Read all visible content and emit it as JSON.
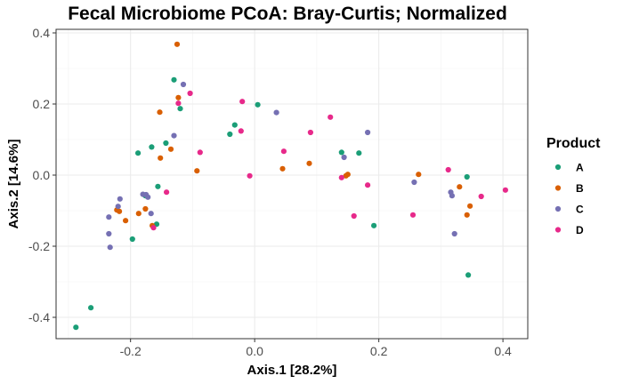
{
  "chart_data": {
    "type": "scatter",
    "title": "Fecal Microbiome PCoA: Bray-Curtis; Normalized",
    "xlabel": "Axis.1   [28.2%]",
    "ylabel": "Axis.2   [14.6%]",
    "xlim": [
      -0.32,
      0.44
    ],
    "ylim": [
      -0.46,
      0.41
    ],
    "x_ticks": [
      -0.2,
      0.0,
      0.2,
      0.4
    ],
    "x_tick_labels": [
      "-0.2",
      "0.0",
      "0.2",
      "0.4"
    ],
    "y_ticks": [
      -0.4,
      -0.2,
      0.0,
      0.2,
      0.4
    ],
    "y_tick_labels": [
      "-0.4",
      "-0.2",
      "0.0",
      "0.2",
      "0.4"
    ],
    "grid": true,
    "legend": {
      "title": "Product",
      "position": "right"
    },
    "series": [
      {
        "name": "A",
        "color": "#1b9e77",
        "points": [
          [
            -0.288,
            -0.428
          ],
          [
            -0.264,
            -0.373
          ],
          [
            -0.197,
            -0.18
          ],
          [
            -0.188,
            0.062
          ],
          [
            -0.176,
            -0.058
          ],
          [
            -0.166,
            0.079
          ],
          [
            -0.156,
            -0.032
          ],
          [
            -0.158,
            -0.138
          ],
          [
            -0.143,
            0.09
          ],
          [
            -0.13,
            0.268
          ],
          [
            -0.12,
            0.187
          ],
          [
            -0.04,
            0.115
          ],
          [
            -0.032,
            0.141
          ],
          [
            0.005,
            0.198
          ],
          [
            0.14,
            0.064
          ],
          [
            0.168,
            0.062
          ],
          [
            0.192,
            -0.142
          ],
          [
            0.342,
            -0.005
          ],
          [
            0.344,
            -0.281
          ]
        ]
      },
      {
        "name": "B",
        "color": "#d95f02",
        "points": [
          [
            -0.222,
            -0.098
          ],
          [
            -0.218,
            -0.102
          ],
          [
            -0.208,
            -0.128
          ],
          [
            -0.187,
            -0.108
          ],
          [
            -0.176,
            -0.095
          ],
          [
            -0.165,
            -0.142
          ],
          [
            -0.153,
            0.177
          ],
          [
            -0.152,
            0.048
          ],
          [
            -0.135,
            0.073
          ],
          [
            -0.125,
            0.368
          ],
          [
            -0.123,
            0.218
          ],
          [
            -0.093,
            0.012
          ],
          [
            0.045,
            0.018
          ],
          [
            0.088,
            0.033
          ],
          [
            0.147,
            -0.002
          ],
          [
            0.15,
            0.002
          ],
          [
            0.264,
            0.002
          ],
          [
            0.33,
            -0.033
          ],
          [
            0.342,
            -0.112
          ],
          [
            0.347,
            -0.087
          ]
        ]
      },
      {
        "name": "C",
        "color": "#7570b3",
        "points": [
          [
            -0.235,
            -0.118
          ],
          [
            -0.235,
            -0.165
          ],
          [
            -0.233,
            -0.203
          ],
          [
            -0.22,
            -0.088
          ],
          [
            -0.217,
            -0.067
          ],
          [
            -0.18,
            -0.054
          ],
          [
            -0.175,
            -0.055
          ],
          [
            -0.172,
            -0.062
          ],
          [
            -0.167,
            -0.108
          ],
          [
            -0.13,
            0.111
          ],
          [
            -0.115,
            0.255
          ],
          [
            0.035,
            0.176
          ],
          [
            0.144,
            0.05
          ],
          [
            0.182,
            0.12
          ],
          [
            0.257,
            -0.02
          ],
          [
            0.316,
            -0.048
          ],
          [
            0.318,
            -0.058
          ],
          [
            0.322,
            -0.165
          ]
        ]
      },
      {
        "name": "D",
        "color": "#e7298a",
        "points": [
          [
            -0.163,
            -0.148
          ],
          [
            -0.142,
            -0.048
          ],
          [
            -0.123,
            0.202
          ],
          [
            -0.104,
            0.23
          ],
          [
            -0.088,
            0.064
          ],
          [
            -0.022,
            0.124
          ],
          [
            -0.02,
            0.207
          ],
          [
            -0.008,
            -0.002
          ],
          [
            0.047,
            0.067
          ],
          [
            0.09,
            0.12
          ],
          [
            0.122,
            0.163
          ],
          [
            0.14,
            -0.007
          ],
          [
            0.16,
            -0.115
          ],
          [
            0.182,
            -0.028
          ],
          [
            0.255,
            -0.112
          ],
          [
            0.312,
            0.015
          ],
          [
            0.365,
            -0.06
          ],
          [
            0.404,
            -0.042
          ]
        ]
      }
    ]
  }
}
